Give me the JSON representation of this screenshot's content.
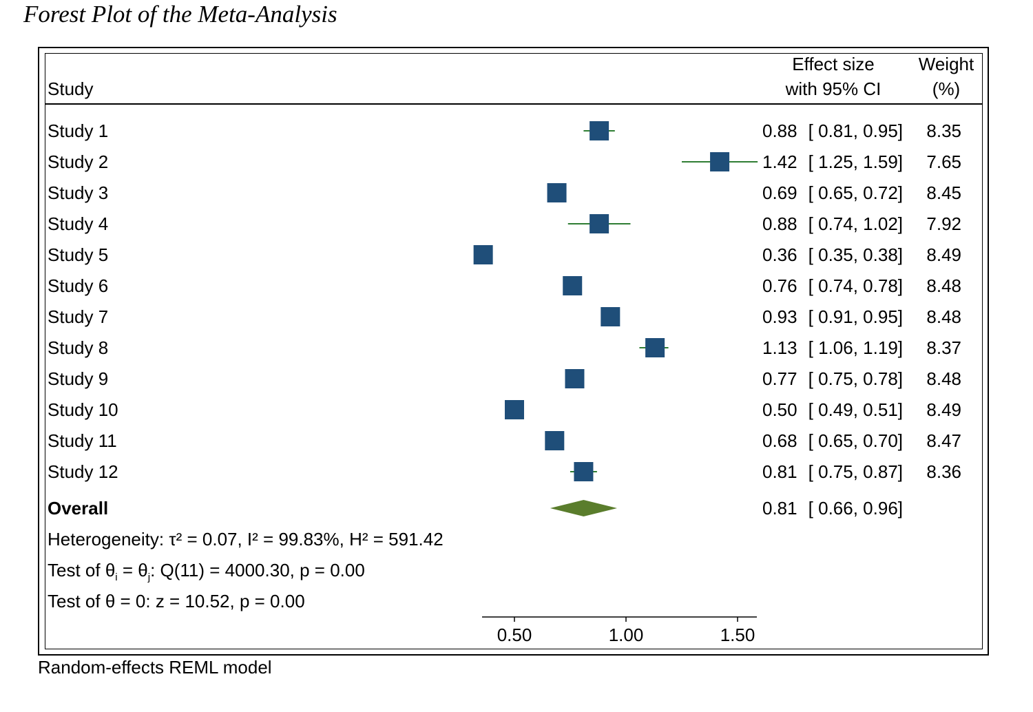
{
  "title": "Forest Plot of the Meta-Analysis",
  "footer": "Random-effects REML model",
  "header": {
    "study": "Study",
    "effect_line1": "Effect size",
    "effect_line2": "with 95% CI",
    "weight_line1": "Weight",
    "weight_line2": "(%)"
  },
  "colors": {
    "marker": "#1f4e79",
    "ci_line": "#2e7d32",
    "diamond": "#5a7d2c",
    "frame": "#000000"
  },
  "chart_data": {
    "type": "forest",
    "xaxis": {
      "ticks": [
        0.5,
        1.0,
        1.5
      ],
      "tick_labels": [
        "0.50",
        "1.00",
        "1.50"
      ],
      "range": [
        0.36,
        1.59
      ]
    },
    "studies": [
      {
        "label": "Study  1",
        "es": 0.88,
        "lo": 0.81,
        "hi": 0.95,
        "es_text": "0.88",
        "ci_text": "[ 0.81,  0.95]",
        "weight": "8.35"
      },
      {
        "label": "Study  2",
        "es": 1.42,
        "lo": 1.25,
        "hi": 1.59,
        "es_text": "1.42",
        "ci_text": "[ 1.25,  1.59]",
        "weight": "7.65"
      },
      {
        "label": "Study  3",
        "es": 0.69,
        "lo": 0.65,
        "hi": 0.72,
        "es_text": "0.69",
        "ci_text": "[ 0.65,  0.72]",
        "weight": "8.45"
      },
      {
        "label": "Study  4",
        "es": 0.88,
        "lo": 0.74,
        "hi": 1.02,
        "es_text": "0.88",
        "ci_text": "[ 0.74,  1.02]",
        "weight": "7.92"
      },
      {
        "label": "Study  5",
        "es": 0.36,
        "lo": 0.35,
        "hi": 0.38,
        "es_text": "0.36",
        "ci_text": "[ 0.35,  0.38]",
        "weight": "8.49"
      },
      {
        "label": "Study  6",
        "es": 0.76,
        "lo": 0.74,
        "hi": 0.78,
        "es_text": "0.76",
        "ci_text": "[ 0.74,  0.78]",
        "weight": "8.48"
      },
      {
        "label": "Study  7",
        "es": 0.93,
        "lo": 0.91,
        "hi": 0.95,
        "es_text": "0.93",
        "ci_text": "[ 0.91,  0.95]",
        "weight": "8.48"
      },
      {
        "label": "Study  8",
        "es": 1.13,
        "lo": 1.06,
        "hi": 1.19,
        "es_text": "1.13",
        "ci_text": "[ 1.06,  1.19]",
        "weight": "8.37"
      },
      {
        "label": "Study  9",
        "es": 0.77,
        "lo": 0.75,
        "hi": 0.78,
        "es_text": "0.77",
        "ci_text": "[ 0.75,  0.78]",
        "weight": "8.48"
      },
      {
        "label": "Study 10",
        "es": 0.5,
        "lo": 0.49,
        "hi": 0.51,
        "es_text": "0.50",
        "ci_text": "[ 0.49,  0.51]",
        "weight": "8.49"
      },
      {
        "label": "Study 11",
        "es": 0.68,
        "lo": 0.65,
        "hi": 0.7,
        "es_text": "0.68",
        "ci_text": "[ 0.65,  0.70]",
        "weight": "8.47"
      },
      {
        "label": "Study 12",
        "es": 0.81,
        "lo": 0.75,
        "hi": 0.87,
        "es_text": "0.81",
        "ci_text": "[ 0.75,  0.87]",
        "weight": "8.36"
      }
    ],
    "overall": {
      "label": "Overall",
      "es": 0.81,
      "lo": 0.66,
      "hi": 0.96,
      "es_text": "0.81",
      "ci_text": "[ 0.66,  0.96]"
    }
  },
  "stats": {
    "heterogeneity": "Heterogeneity: τ² = 0.07, I² = 99.83%, H² = 591.42",
    "test_homog_prefix": "Test of θ",
    "test_homog_sub_i": "i",
    "test_homog_eq": " = θ",
    "test_homog_sub_j": "j",
    "test_homog_rest": ": Q(11) = 4000.30, p = 0.00",
    "test_overall": "Test of θ = 0: z = 10.52, p = 0.00"
  }
}
